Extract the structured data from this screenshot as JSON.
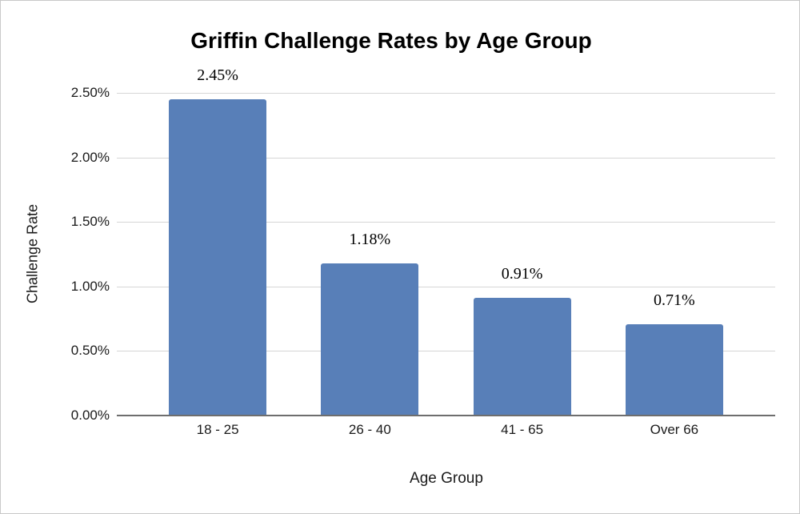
{
  "chart_data": {
    "type": "bar",
    "title": "Griffin Challenge Rates by Age Group",
    "xlabel": "Age Group",
    "ylabel": "Challenge Rate",
    "categories": [
      "18 - 25",
      "26 - 40",
      "41 - 65",
      "Over 66"
    ],
    "values": [
      2.45,
      1.18,
      0.91,
      0.71
    ],
    "data_labels": [
      "2.45%",
      "1.18%",
      "0.91%",
      "0.71%"
    ],
    "ylim": [
      0,
      2.5
    ],
    "ytick_labels_bottom_up": [
      "0.00%",
      "0.50%",
      "1.00%",
      "1.50%",
      "2.00%",
      "2.50%"
    ],
    "grid": true,
    "legend": "none",
    "colors": {
      "bar": "#587fb8",
      "gridline": "#d6d6d6",
      "axis_line": "#6e6e6e",
      "text": "#1a1a1a",
      "canvas_border": "#c9c9c9"
    }
  }
}
